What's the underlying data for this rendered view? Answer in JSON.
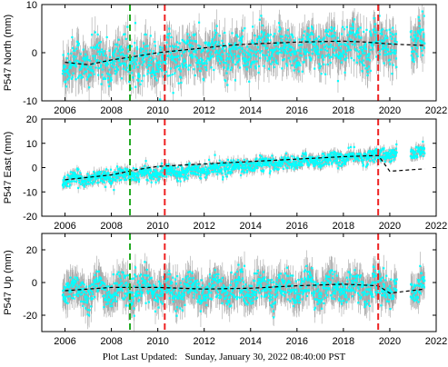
{
  "footer": {
    "label": "Plot Last Updated:",
    "value": "Sunday, January 30, 2022 08:40:00 PST"
  },
  "colors": {
    "observations": "#00ffff",
    "error_bars": "#a6a6a6",
    "model": "#000000",
    "antenna_change": "#22aa22",
    "earthquake": "#ee2222"
  },
  "chart_data": [
    {
      "type": "scatter",
      "component": "North",
      "ylabel": "P547 North (mm)",
      "xlim": [
        2005,
        2022
      ],
      "ylim": [
        -10,
        10
      ],
      "xticks": [
        2006,
        2008,
        2010,
        2012,
        2014,
        2016,
        2018,
        2020,
        2022
      ],
      "yticks": [
        -10,
        0,
        10
      ],
      "coverage": [
        [
          2005.9,
          2020.3
        ],
        [
          2020.9,
          2021.5
        ]
      ],
      "trend": {
        "t0": 2005.9,
        "y0": -2.4,
        "rate": 0.3,
        "seasonal_amp": 1.3,
        "scatter": 2.3,
        "error_bar": 2.6
      },
      "model_curve": [
        [
          2006.0,
          -2.0
        ],
        [
          2007.0,
          -2.5
        ],
        [
          2008.0,
          -1.5
        ],
        [
          2009.0,
          -0.8
        ],
        [
          2010.0,
          0.0
        ],
        [
          2011.0,
          0.5
        ],
        [
          2012.0,
          1.0
        ],
        [
          2013.0,
          1.5
        ],
        [
          2014.0,
          1.8
        ],
        [
          2015.0,
          2.0
        ],
        [
          2016.0,
          2.2
        ],
        [
          2017.0,
          2.3
        ],
        [
          2018.0,
          2.4
        ],
        [
          2019.0,
          2.2
        ],
        [
          2020.0,
          1.8
        ],
        [
          2021.5,
          1.5
        ]
      ],
      "vlines_green": [
        2008.8
      ],
      "vlines_red": [
        2010.3,
        2019.5
      ]
    },
    {
      "type": "scatter",
      "component": "East",
      "ylabel": "P547 East (mm)",
      "xlim": [
        2005,
        2022
      ],
      "ylim": [
        -20,
        20
      ],
      "xticks": [
        2006,
        2008,
        2010,
        2012,
        2014,
        2016,
        2018,
        2020,
        2022
      ],
      "yticks": [
        -20,
        -10,
        0,
        10,
        20
      ],
      "coverage": [
        [
          2005.9,
          2020.3
        ],
        [
          2020.9,
          2021.5
        ]
      ],
      "trend": {
        "t0": 2005.9,
        "y0": -5.2,
        "rate": 0.75,
        "seasonal_amp": 0.7,
        "scatter": 1.4,
        "error_bar": 1.6
      },
      "model_curve": [
        [
          2006.0,
          -5.0
        ],
        [
          2008.0,
          -3.0
        ],
        [
          2009.0,
          -1.0
        ],
        [
          2010.0,
          0.5
        ],
        [
          2012.0,
          1.5
        ],
        [
          2014.0,
          2.5
        ],
        [
          2016.0,
          3.5
        ],
        [
          2018.0,
          4.5
        ],
        [
          2019.5,
          5.0
        ],
        [
          2020.0,
          -1.5
        ],
        [
          2021.5,
          -0.5
        ]
      ],
      "vlines_green": [
        2008.8
      ],
      "vlines_red": [
        2010.3,
        2019.5
      ]
    },
    {
      "type": "scatter",
      "component": "Up",
      "ylabel": "P547 Up (mm)",
      "xlim": [
        2005,
        2022
      ],
      "ylim": [
        -30,
        30
      ],
      "xticks": [
        2006,
        2008,
        2010,
        2012,
        2014,
        2016,
        2018,
        2020,
        2022
      ],
      "yticks": [
        -20,
        0,
        20
      ],
      "coverage": [
        [
          2005.9,
          2020.3
        ],
        [
          2020.9,
          2021.5
        ]
      ],
      "trend": {
        "t0": 2005.9,
        "y0": -5.0,
        "rate": 0.15,
        "seasonal_amp": 4.0,
        "scatter": 4.5,
        "error_bar": 7.0
      },
      "model_curve": [
        [
          2006.0,
          -5.0
        ],
        [
          2008.0,
          -3.0
        ],
        [
          2010.0,
          -3.0
        ],
        [
          2012.0,
          -4.0
        ],
        [
          2014.0,
          -3.5
        ],
        [
          2016.0,
          -2.0
        ],
        [
          2018.0,
          -1.0
        ],
        [
          2019.5,
          -2.0
        ],
        [
          2020.0,
          -6.5
        ],
        [
          2021.5,
          -4.0
        ]
      ],
      "vlines_green": [
        2008.8
      ],
      "vlines_red": [
        2010.3,
        2019.5
      ]
    }
  ]
}
